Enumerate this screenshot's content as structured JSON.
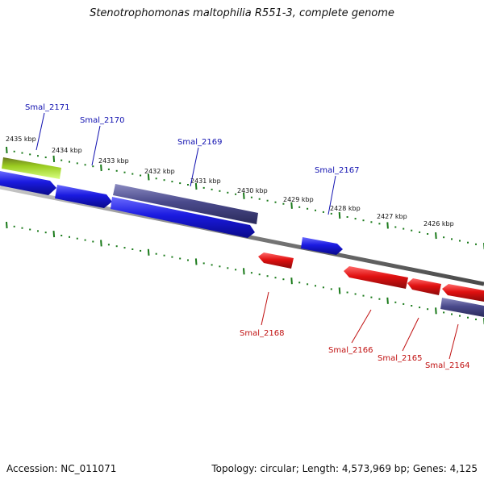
{
  "title": "Stenotrophomonas maltophilia R551-3, complete genome",
  "footer": {
    "accession": "Accession: NC_011071",
    "summary": "Topology: circular; Length: 4,573,969 bp; Genes: 4,125"
  },
  "colors": {
    "forward_gene": "#1a1ae0",
    "reverse_gene": "#e01010",
    "operon": "#4a4a8c",
    "highlight": "#8ccc1c",
    "backbone": "#8a8a8a",
    "ticks": "#1a7a1a",
    "forward_label": "#1010b0",
    "reverse_label": "#c01010"
  },
  "scale_labels": [
    "2435 kbp",
    "2434 kbp",
    "2433 kbp",
    "2432 kbp",
    "2431 kbp",
    "2430 kbp",
    "2429 kbp",
    "2428 kbp",
    "2427 kbp",
    "2426 kbp"
  ],
  "gene_labels": {
    "forward": [
      "Smal_2171",
      "Smal_2170",
      "Smal_2169",
      "Smal_2167"
    ],
    "reverse": [
      "Smal_2168",
      "Smal_2166",
      "Smal_2165",
      "Smal_2164"
    ]
  }
}
